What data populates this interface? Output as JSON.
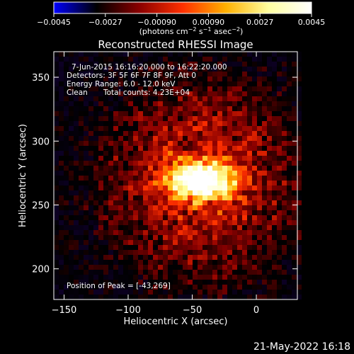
{
  "chart_data": {
    "type": "heatmap",
    "title": "Reconstructed RHESSI Image",
    "xlabel": "Heliocentric X (arcsec)",
    "ylabel": "Heliocentric Y (arcsec)",
    "xlim": [
      -158,
      32
    ],
    "ylim": [
      176,
      370
    ],
    "x_ticks": [
      -150,
      -100,
      -50,
      0
    ],
    "y_ticks": [
      200,
      250,
      300,
      350
    ],
    "x_tick_labels": [
      "−150",
      "−100",
      "−50",
      "0"
    ],
    "y_tick_labels": [
      "200",
      "250",
      "300",
      "350"
    ],
    "peak": {
      "x": -43,
      "y": 269
    },
    "source_sigma_arcsec": [
      16,
      9
    ],
    "grid": false,
    "colorbar": {
      "min": -0.0045,
      "max": 0.0045,
      "ticks": [
        -0.0045,
        -0.0027,
        -0.0009,
        0.0009,
        0.0027,
        0.0045
      ],
      "tick_labels": [
        "−0.0045",
        "−0.0027",
        "−0.00090",
        "0.00090",
        "0.0027",
        "0.0045"
      ],
      "units_prefix": "(photons cm",
      "units_sup1": "−2",
      "units_mid": " s",
      "units_sup2": "−1",
      "units_mid2": " asec",
      "units_sup3": "−2",
      "units_suffix": ")",
      "colormap": [
        "#0000ff",
        "#000000",
        "#8b0000",
        "#ff3000",
        "#ffb000",
        "#ffffa0",
        "#ffffff"
      ]
    },
    "annotations": {
      "time_range": "7-Jun-2015 16:16:20.000 to 16:22:20.000",
      "detectors": "Detectors: 3F 5F 6F 7F 8F 9F, Att 0",
      "energy_range": "Energy Range: 6.0 - 12.0 keV",
      "method": "Clean",
      "total_counts": "Total counts: 4.23E+04",
      "peak_position": "Position of Peak = [-43,269]"
    }
  },
  "footer": {
    "timestamp": "21-May-2022 16:18"
  }
}
